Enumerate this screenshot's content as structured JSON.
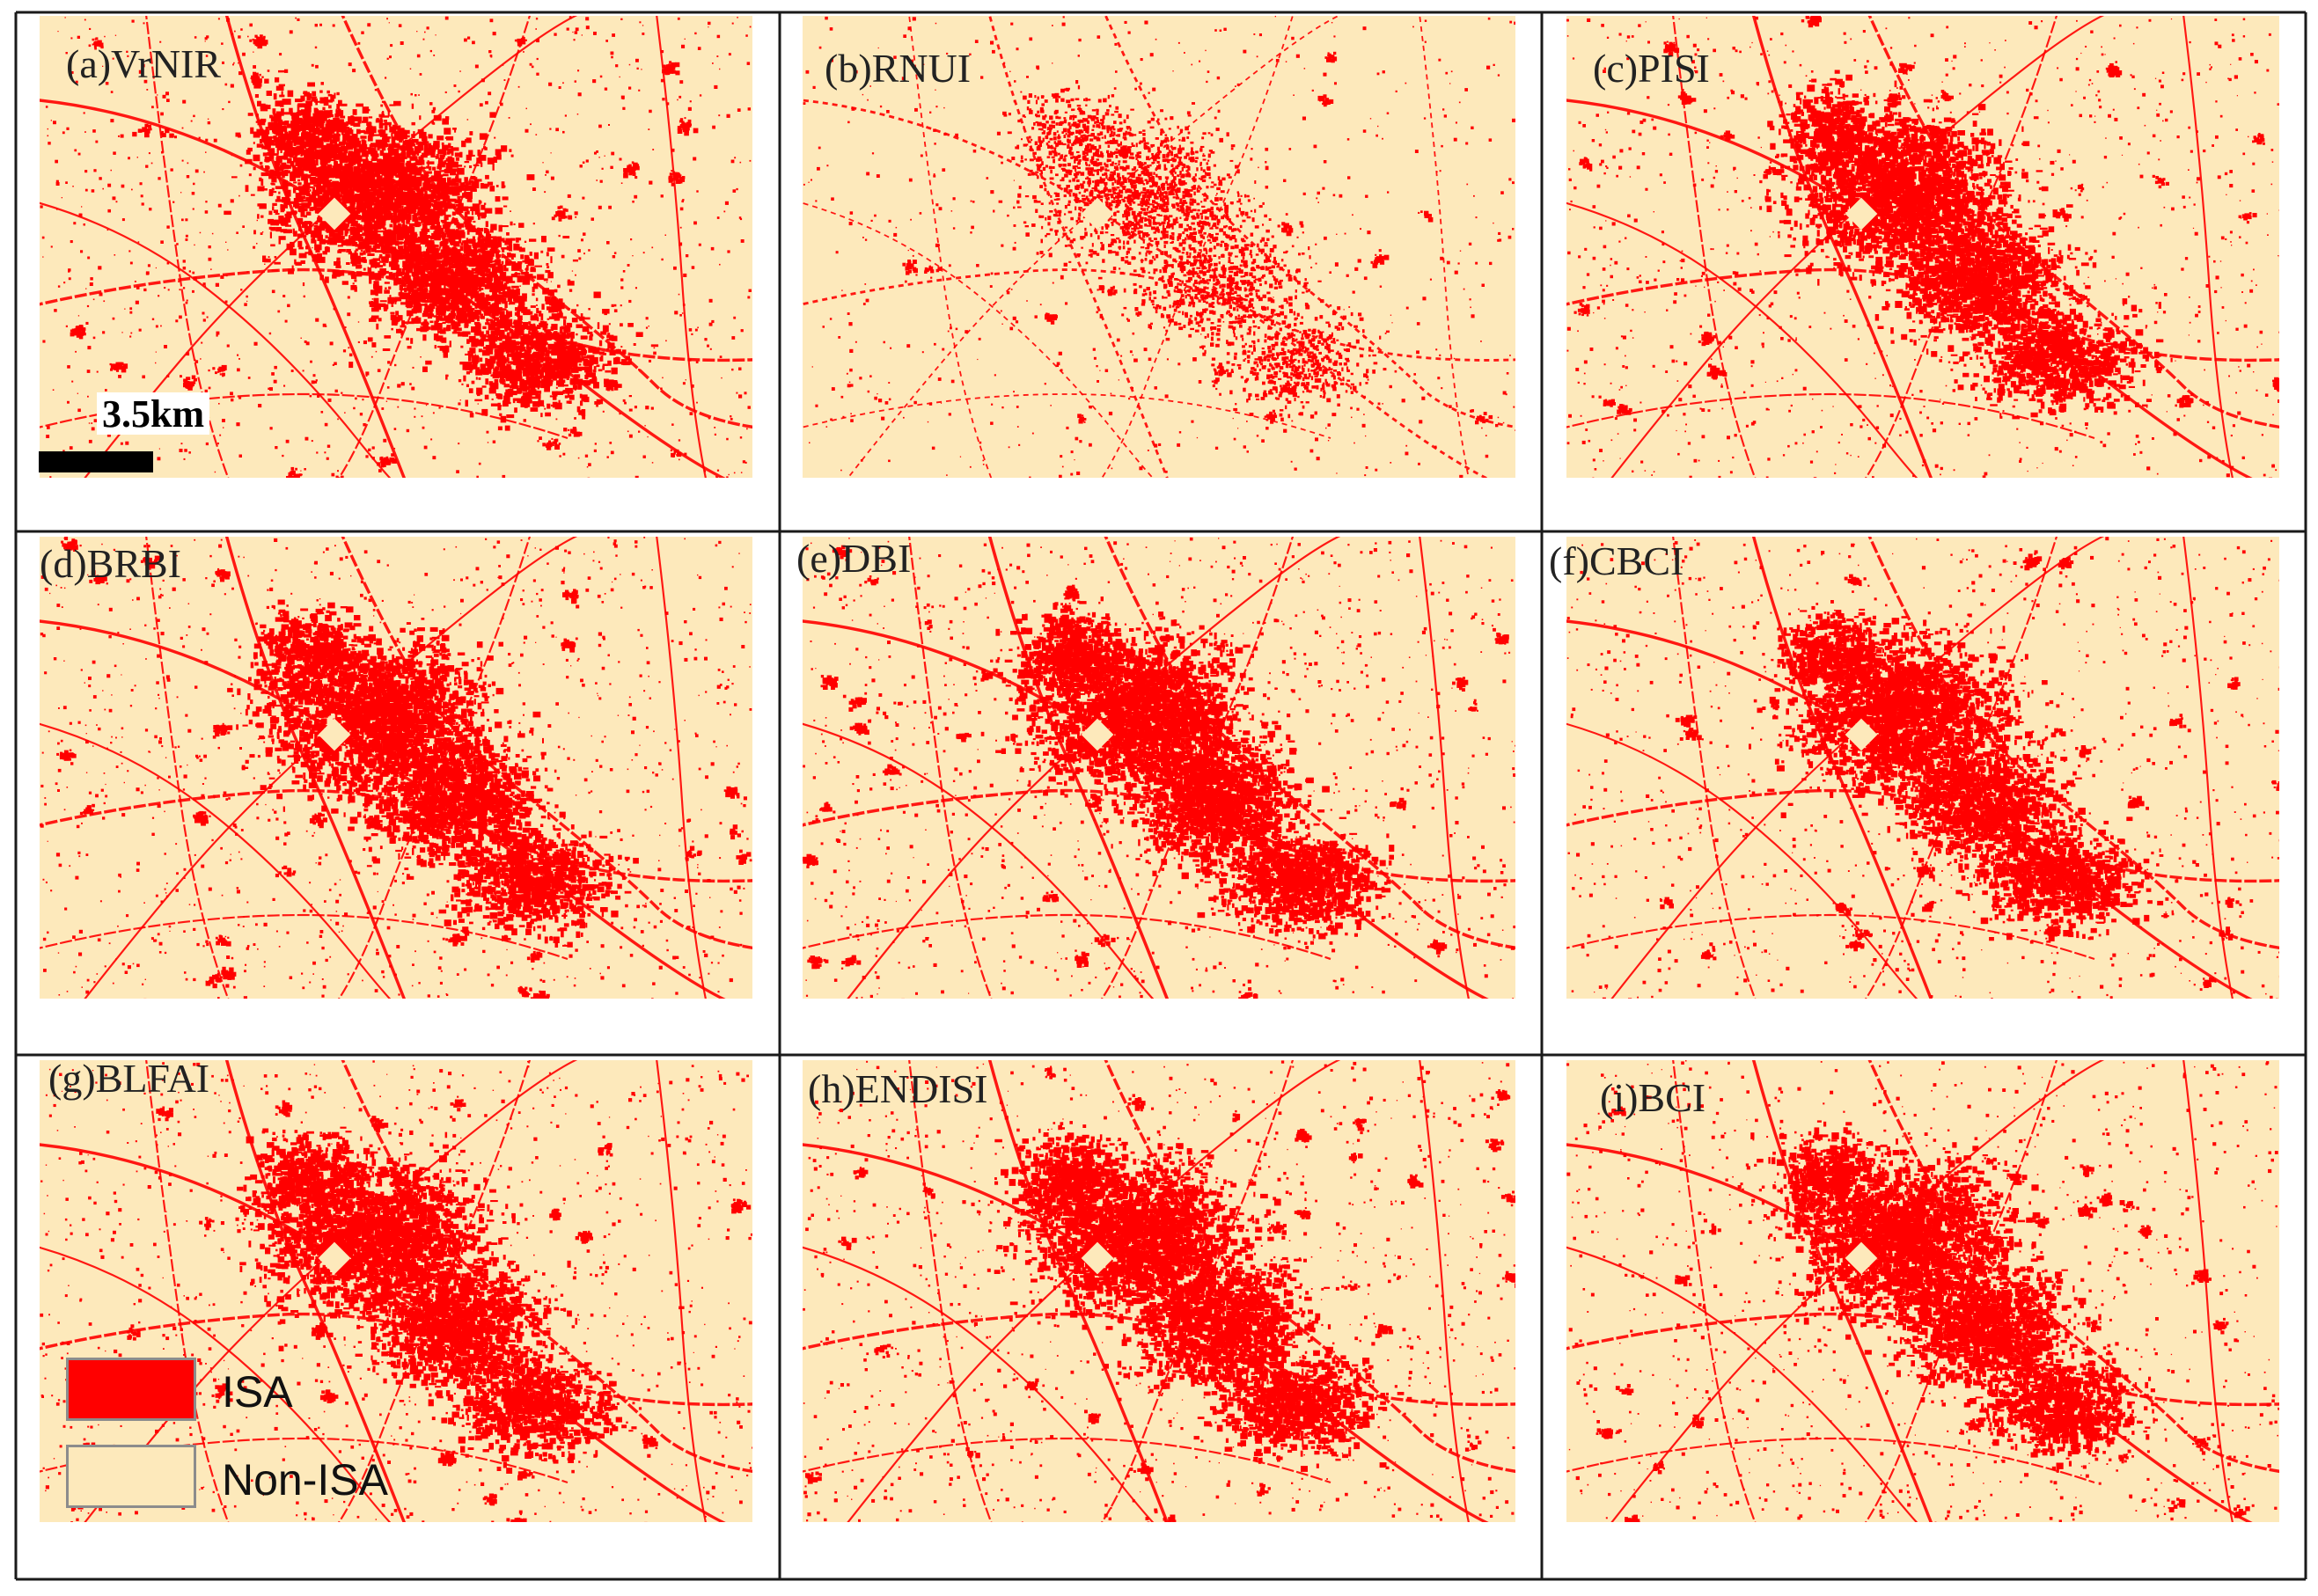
{
  "panels": [
    {
      "label": "(a)VrNIR",
      "density": 0.98,
      "seed": 11
    },
    {
      "label": "(b)RNUI",
      "density": 0.55,
      "seed": 23
    },
    {
      "label": "(c)PISI",
      "density": 0.95,
      "seed": 37
    },
    {
      "label": "(d)BRBI",
      "density": 0.96,
      "seed": 41
    },
    {
      "label": "(e)DBI",
      "density": 1.05,
      "seed": 53
    },
    {
      "label": "(f)CBCI",
      "density": 0.92,
      "seed": 67
    },
    {
      "label": "(g)BLFAI",
      "density": 0.97,
      "seed": 71
    },
    {
      "label": "(h)ENDISI",
      "density": 1.0,
      "seed": 83
    },
    {
      "label": "(i)BCI",
      "density": 0.98,
      "seed": 97
    }
  ],
  "scale_bar": {
    "label": "3.5km"
  },
  "legend": [
    {
      "label": "ISA",
      "color": "#ff0000"
    },
    {
      "label": "Non-ISA",
      "color": "#fde9bb"
    }
  ],
  "colors": {
    "isa": "#ff0000",
    "non_isa": "#fde9bb",
    "grid": "#1a1a1a"
  }
}
